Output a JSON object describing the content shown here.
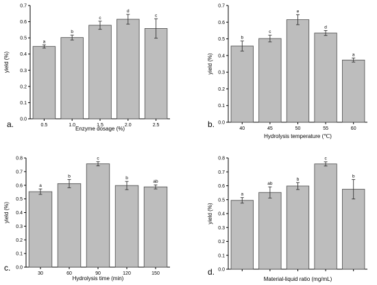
{
  "chart_data": [
    {
      "panel": "a.",
      "type": "bar",
      "xlabel": "Enzyme dosage (%)",
      "ylabel": "yield (%)",
      "categories": [
        "0.5",
        "1.0",
        "1.5",
        "2.0",
        "2.5"
      ],
      "values": [
        0.447,
        0.502,
        0.578,
        0.615,
        0.558
      ],
      "errors": [
        0.01,
        0.015,
        0.025,
        0.03,
        0.06
      ],
      "letters": [
        "a",
        "b",
        "c",
        "d",
        "c"
      ],
      "ylim": [
        0,
        0.7
      ],
      "yticks": [
        "0.0",
        "0.1",
        "0.2",
        "0.3",
        "0.4",
        "0.5",
        "0.6",
        "0.7"
      ]
    },
    {
      "panel": "b.",
      "type": "bar",
      "xlabel": "Hydrolysis temperature (℃)",
      "ylabel": "yield (%)",
      "categories": [
        "40",
        "45",
        "50",
        "55",
        "60"
      ],
      "values": [
        0.457,
        0.502,
        0.615,
        0.535,
        0.373
      ],
      "errors": [
        0.03,
        0.02,
        0.03,
        0.015,
        0.012
      ],
      "letters": [
        "b",
        "c",
        "e",
        "d",
        "a"
      ],
      "ylim": [
        0,
        0.7
      ],
      "yticks": [
        "0.0",
        "0.1",
        "0.2",
        "0.3",
        "0.4",
        "0.5",
        "0.6",
        "0.7"
      ]
    },
    {
      "panel": "c.",
      "type": "bar",
      "xlabel": "Hydrolysis time (min)",
      "ylabel": "yield (%)",
      "categories": [
        "30",
        "60",
        "90",
        "120",
        "150"
      ],
      "values": [
        0.553,
        0.612,
        0.757,
        0.598,
        0.588
      ],
      "errors": [
        0.02,
        0.03,
        0.015,
        0.03,
        0.015
      ],
      "letters": [
        "a",
        "b",
        "c",
        "b",
        "ab"
      ],
      "ylim": [
        0,
        0.8
      ],
      "yticks": [
        "0.0",
        "0.1",
        "0.2",
        "0.3",
        "0.4",
        "0.5",
        "0.6",
        "0.7",
        "0.8"
      ]
    },
    {
      "panel": "d.",
      "type": "bar",
      "xlabel": "Material-liquid ratio (mg/mL)",
      "ylabel": "yield (%)",
      "categories": [
        "",
        "",
        "",
        "",
        ""
      ],
      "values": [
        0.495,
        0.552,
        0.598,
        0.757,
        0.575
      ],
      "errors": [
        0.02,
        0.04,
        0.025,
        0.015,
        0.07
      ],
      "letters": [
        "a",
        "ab",
        "b",
        "c",
        "b"
      ],
      "ylim": [
        0,
        0.8
      ],
      "yticks": [
        "0.0",
        "0.1",
        "0.2",
        "0.3",
        "0.4",
        "0.5",
        "0.6",
        "0.7",
        "0.8"
      ]
    }
  ]
}
